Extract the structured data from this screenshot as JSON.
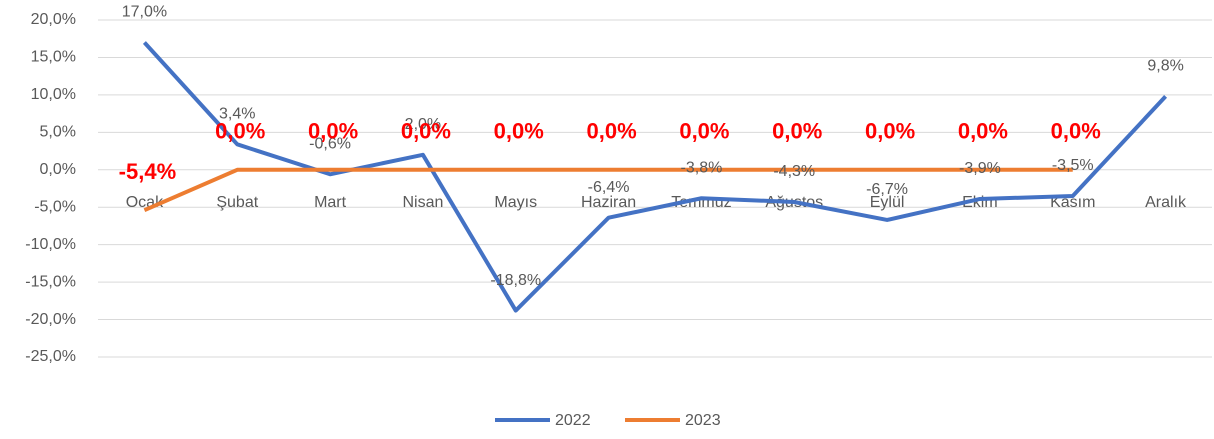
{
  "chart_data": {
    "type": "line",
    "categories": [
      "Ocak",
      "Şubat",
      "Mart",
      "Nisan",
      "Mayıs",
      "Haziran",
      "Temmuz",
      "Ağustos",
      "Eylül",
      "Ekim",
      "Kasım",
      "Aralık"
    ],
    "series": [
      {
        "name": "2022",
        "color": "#4472c4",
        "values": [
          17.0,
          3.4,
          -0.6,
          2.0,
          -18.8,
          -6.4,
          -3.8,
          -4.3,
          -6.7,
          -3.9,
          -3.5,
          9.8
        ],
        "value_labels": [
          "17,0%",
          "3,4%",
          "-0,6%",
          "2,0%",
          "-18,8%",
          "-6,4%",
          "-3,8%",
          "-4,3%",
          "-6,7%",
          "-3,9%",
          "-3,5%",
          "9,8%"
        ]
      },
      {
        "name": "2023",
        "color": "#ed7d31",
        "values": [
          -5.4,
          0.0,
          0.0,
          0.0,
          0.0,
          0.0,
          0.0,
          0.0,
          0.0,
          0.0,
          0.0,
          null
        ],
        "value_labels": [
          "-5,4%",
          "0,0%",
          "0,0%",
          "0,0%",
          "0,0%",
          "0,0%",
          "0,0%",
          "0,0%",
          "0,0%",
          "0,0%",
          "0,0%",
          null
        ]
      }
    ],
    "ylim": [
      -25,
      20
    ],
    "yticks": [
      {
        "value": 20,
        "label": "20,0%"
      },
      {
        "value": 15,
        "label": "15,0%"
      },
      {
        "value": 10,
        "label": "10,0%"
      },
      {
        "value": 5,
        "label": "5,0%"
      },
      {
        "value": 0,
        "label": "0,0%"
      },
      {
        "value": -5,
        "label": "-5,0%"
      },
      {
        "value": -10,
        "label": "-10,0%"
      },
      {
        "value": -15,
        "label": "-15,0%"
      },
      {
        "value": -20,
        "label": "-20,0%"
      },
      {
        "value": -25,
        "label": "-25,0%"
      }
    ],
    "grid": true,
    "legend": "bottom"
  }
}
